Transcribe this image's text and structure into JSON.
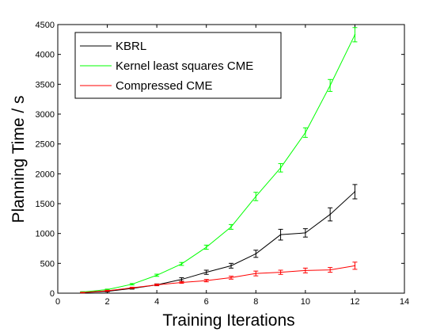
{
  "chart_data": {
    "type": "line",
    "xlabel": "Training Iterations",
    "ylabel": "Planning Time / s",
    "xlim": [
      0,
      14
    ],
    "ylim": [
      0,
      4500
    ],
    "xticks": [
      "0",
      "2",
      "4",
      "6",
      "8",
      "10",
      "12",
      "14"
    ],
    "yticks": [
      "0",
      "500",
      "1000",
      "1500",
      "2000",
      "2500",
      "3000",
      "3500",
      "4000",
      "4500"
    ],
    "grid": false,
    "legend_position": "top-left",
    "series": [
      {
        "name": "KBRL",
        "color": "#000000",
        "x": [
          1,
          2,
          3,
          4,
          5,
          6,
          7,
          8,
          9,
          10,
          11,
          12
        ],
        "y": [
          10,
          30,
          80,
          140,
          230,
          350,
          460,
          660,
          980,
          1010,
          1320,
          1700
        ],
        "error": [
          5,
          8,
          12,
          15,
          30,
          35,
          40,
          60,
          90,
          70,
          110,
          120
        ]
      },
      {
        "name": "Kernel least squares CME",
        "color": "#00ff00",
        "x": [
          1,
          2,
          3,
          4,
          5,
          6,
          7,
          8,
          9,
          10,
          11,
          12
        ],
        "y": [
          20,
          60,
          150,
          300,
          490,
          770,
          1110,
          1620,
          2100,
          2690,
          3480,
          4330
        ],
        "error": [
          5,
          8,
          12,
          18,
          25,
          35,
          40,
          70,
          70,
          80,
          100,
          120
        ]
      },
      {
        "name": "Compressed CME",
        "color": "#ff0000",
        "x": [
          1,
          2,
          3,
          4,
          5,
          6,
          7,
          8,
          9,
          10,
          11,
          12
        ],
        "y": [
          10,
          40,
          90,
          140,
          180,
          210,
          260,
          330,
          350,
          380,
          390,
          460
        ],
        "error": [
          5,
          8,
          10,
          12,
          15,
          20,
          25,
          40,
          35,
          40,
          40,
          60
        ]
      }
    ]
  }
}
